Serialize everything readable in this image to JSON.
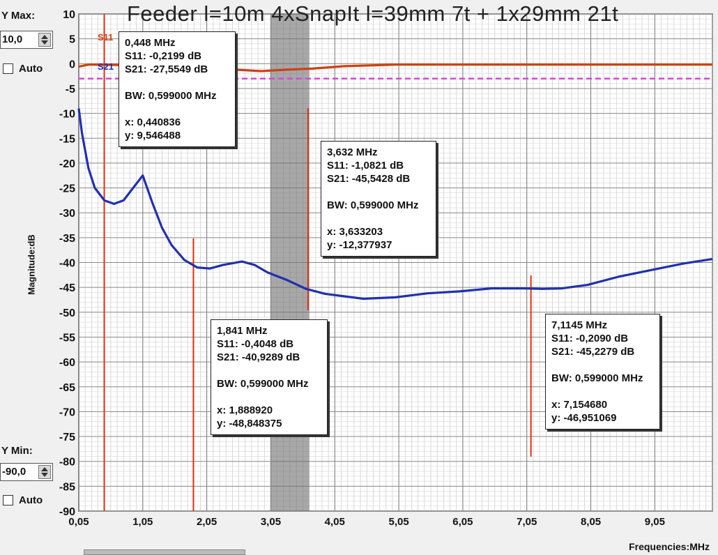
{
  "chart_data": {
    "type": "line",
    "title": "Feeder l=10m 4xSnapIt l=39mm 7t + 1x29mm 21t",
    "ylabel": "Magnitude:dB",
    "xlabel": "Frequencies:MHz",
    "xlim": [
      0.05,
      9.95
    ],
    "ylim": [
      -90,
      10
    ],
    "x_ticks": [
      "0,05",
      "1,05",
      "2,05",
      "3,05",
      "4,05",
      "5,05",
      "6,05",
      "7,05",
      "8,05",
      "9,05"
    ],
    "y_ticks": [
      "10",
      "5",
      "0",
      "-5",
      "-10",
      "-15",
      "-20",
      "-25",
      "-30",
      "-35",
      "-40",
      "-45",
      "-50",
      "-55",
      "-60",
      "-65",
      "-70",
      "-75",
      "-80",
      "-85",
      "-90"
    ],
    "grid": true,
    "reference_line": {
      "y": -3,
      "color": "#e040e0",
      "style": "dashed"
    },
    "band": {
      "x": [
        3.05,
        3.65
      ]
    },
    "series": [
      {
        "name": "S11",
        "color": "#d04010",
        "x": [
          0.05,
          0.2,
          0.45,
          0.8,
          1.2,
          1.6,
          2.0,
          2.5,
          2.9,
          3.3,
          3.7,
          4.2,
          5.0,
          6.0,
          7.0,
          8.0,
          9.0,
          9.95
        ],
        "y": [
          -0.6,
          -0.2,
          -0.22,
          -0.3,
          -0.4,
          -0.45,
          -0.5,
          -1.2,
          -1.5,
          -1.2,
          -1.0,
          -0.5,
          -0.2,
          -0.2,
          -0.2,
          -0.2,
          -0.2,
          -0.2
        ]
      },
      {
        "name": "S21",
        "color": "#2030b0",
        "x": [
          0.05,
          0.1,
          0.2,
          0.3,
          0.45,
          0.6,
          0.75,
          0.9,
          1.05,
          1.2,
          1.35,
          1.5,
          1.7,
          1.9,
          2.1,
          2.3,
          2.6,
          2.8,
          3.0,
          3.3,
          3.6,
          3.9,
          4.2,
          4.5,
          5.0,
          5.5,
          6.0,
          6.5,
          7.0,
          7.3,
          7.6,
          8.0,
          8.5,
          9.0,
          9.5,
          9.95
        ],
        "y": [
          -9,
          -14,
          -21,
          -25,
          -27.5,
          -28.2,
          -27.5,
          -25,
          -22.5,
          -28,
          -33,
          -36.5,
          -39.5,
          -41,
          -41.2,
          -40.5,
          -39.8,
          -40.5,
          -42,
          -43.5,
          -45.3,
          -46.3,
          -46.8,
          -47.3,
          -47,
          -46.2,
          -45.8,
          -45.2,
          -45.2,
          -45.3,
          -45.2,
          -44.5,
          -42.8,
          -41.5,
          -40.2,
          -39.3
        ]
      }
    ],
    "markers": [
      {
        "x": 0.448,
        "head": "0,448 MHz",
        "s11": "S11:  -0,2199 dB",
        "s21": "S21:  -27,5549 dB",
        "bw": "BW: 0,599000 MHz",
        "cx": "x: 0,440836",
        "cy": "y: 9,546488"
      },
      {
        "x": 1.841,
        "head": "1,841 MHz",
        "s11": "S11:  -0,4048 dB",
        "s21": "S21:  -40,9289 dB",
        "bw": "BW: 0,599000 MHz",
        "cx": "x: 1,888920",
        "cy": "y: -48,848375"
      },
      {
        "x": 3.632,
        "head": "3,632 MHz",
        "s11": "S11:  -1,0821 dB",
        "s21": "S21:  -45,5428 dB",
        "bw": "BW: 0,599000 MHz",
        "cx": "x: 3,633203",
        "cy": "y: -12,377937"
      },
      {
        "x": 7.1145,
        "head": "7,1145 MHz",
        "s11": "S11:  -0,2090 dB",
        "s21": "S21:  -45,2279 dB",
        "bw": "BW: 0,599000 MHz",
        "cx": "x: 7,154680",
        "cy": "y: -46,951069"
      }
    ]
  },
  "controls": {
    "ymax_label": "Y Max:",
    "ymax_value": "10,0",
    "ymin_label": "Y Min:",
    "ymin_value": "-90,0",
    "auto_label": "Auto"
  }
}
